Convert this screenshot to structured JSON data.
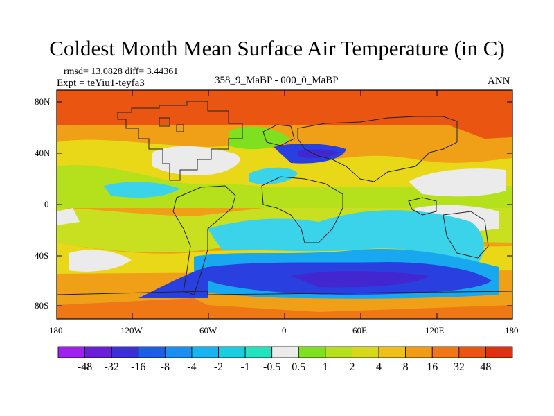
{
  "title": "Coldest Month Mean Surface Air Temperature (in C)",
  "stats": "rmsd= 13.0828 diff= 3.44361",
  "experiment": "Expt = teYiu1-teyfa3",
  "period": "358_9_MaBP - 000_0_MaBP",
  "season": "ANN",
  "lat_ticks": [
    "80N",
    "40N",
    "0",
    "40S",
    "80S"
  ],
  "lon_ticks": [
    "180",
    "120W",
    "60W",
    "0",
    "60E",
    "120E",
    "180"
  ],
  "colorbar": {
    "labels": [
      "-48",
      "-32",
      "-16",
      "-8",
      "-4",
      "-2",
      "-1",
      "-0.5",
      "0.5",
      "1",
      "2",
      "4",
      "8",
      "16",
      "32",
      "48"
    ],
    "colors": [
      "#a020f0",
      "#6a1fd6",
      "#3a2fd8",
      "#1e5ee6",
      "#1b8ff0",
      "#17b5f0",
      "#15cfe0",
      "#22e3c0",
      "#ebebeb",
      "#7fe020",
      "#b4e01c",
      "#d8d81a",
      "#eec018",
      "#f29c16",
      "#f07814",
      "#ea5512",
      "#e03010"
    ]
  },
  "palette": {
    "ocean_cold": "#2a3fe0",
    "ocean_deep": "#4226d0",
    "cyan": "#3ad3ea",
    "aqua": "#18a8f0",
    "white": "#ebebeb",
    "green": "#7fe020",
    "yellowgreen": "#c8e020",
    "yellow": "#e8d818",
    "orange": "#f0a016",
    "darkorange": "#f07814",
    "red": "#ea5512"
  }
}
